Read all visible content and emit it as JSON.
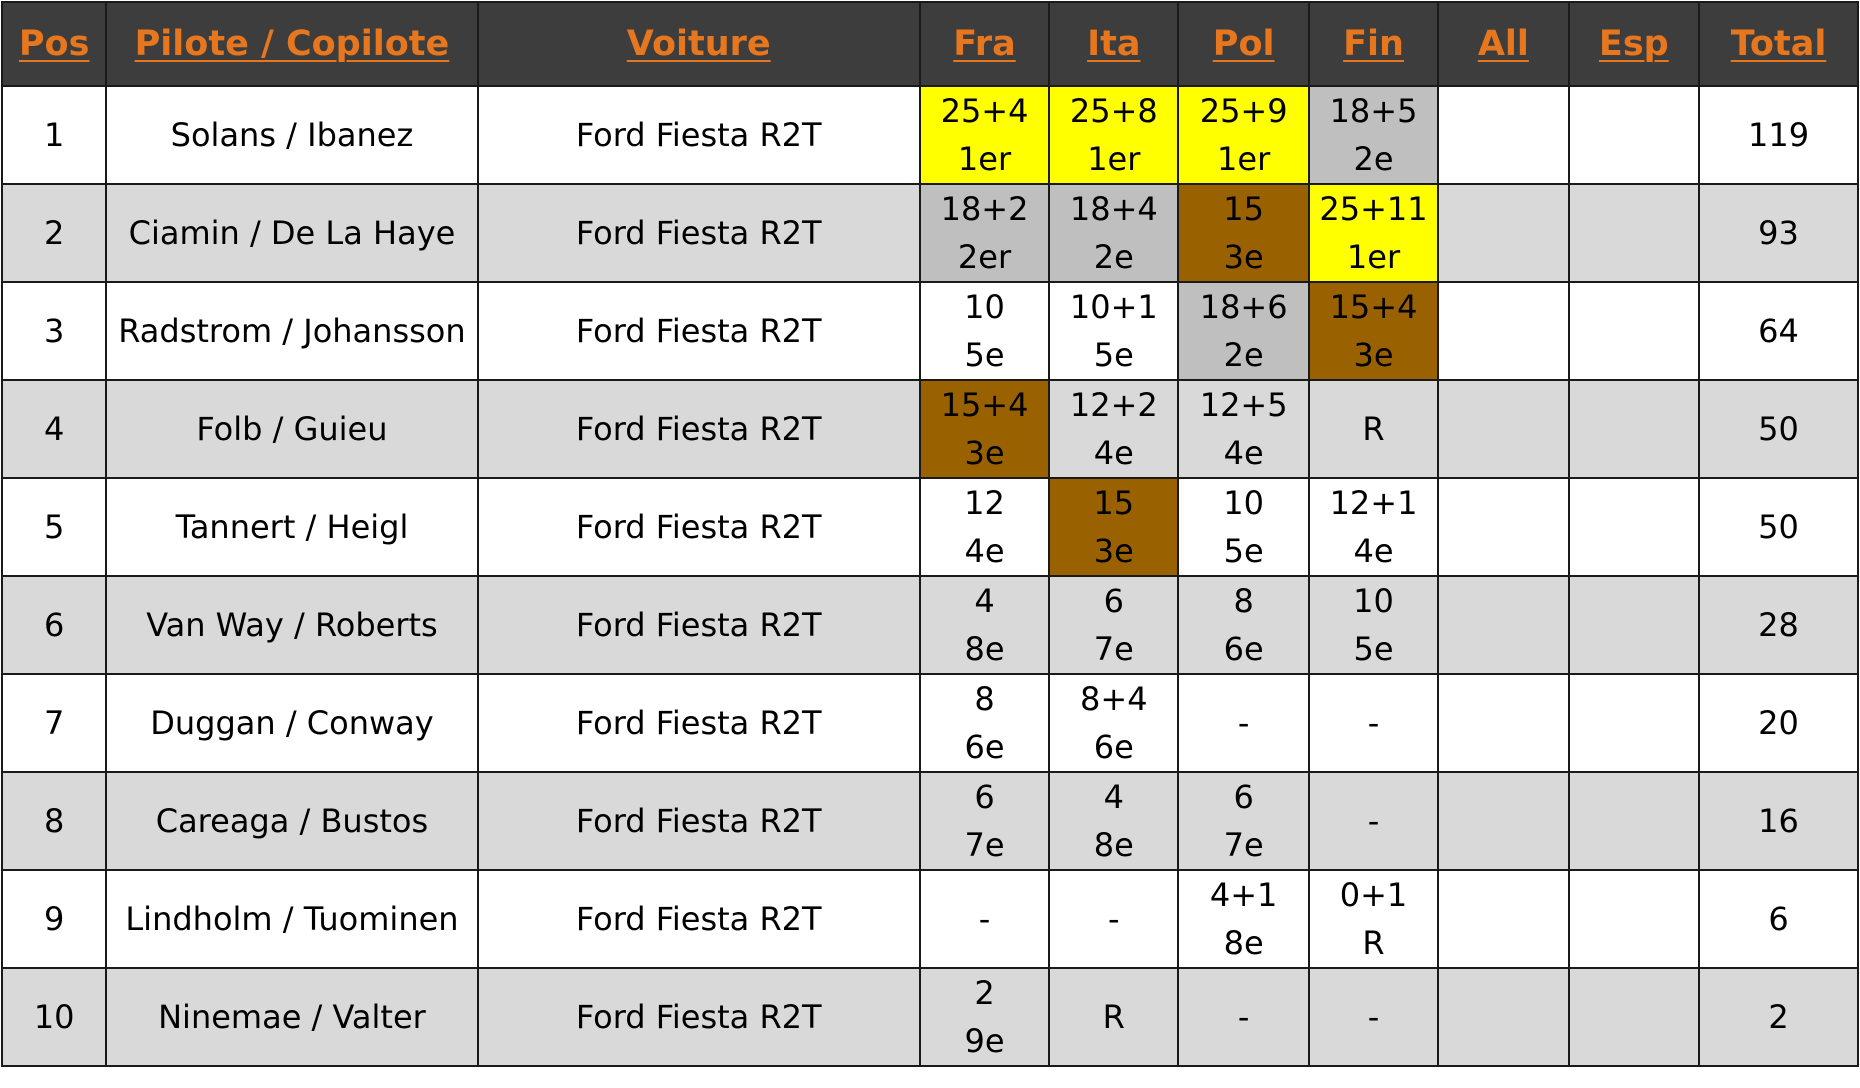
{
  "colors": {
    "header_bg": "#3d3d3d",
    "header_text": "#e6771f",
    "row_odd": "#ffffff",
    "row_even": "#d9d9d9",
    "first_place": "#ffff00",
    "second_place": "#bfbfbf",
    "third_place": "#996100",
    "border": "#1a1a1a"
  },
  "columns": {
    "pos": "Pos",
    "crew": "Pilote / Copilote",
    "car": "Voiture",
    "events": [
      "Fra",
      "Ita",
      "Pol",
      "Fin",
      "All",
      "Esp"
    ],
    "total": "Total"
  },
  "rows": [
    {
      "pos": "1",
      "crew": "Solans / Ibanez",
      "car": "Ford Fiesta R2T",
      "total": "119",
      "events": [
        {
          "pts": "25+4",
          "rank": "1er",
          "podium": "gold"
        },
        {
          "pts": "25+8",
          "rank": "1er",
          "podium": "gold"
        },
        {
          "pts": "25+9",
          "rank": "1er",
          "podium": "gold"
        },
        {
          "pts": "18+5",
          "rank": "2e",
          "podium": "silver"
        },
        {
          "pts": "",
          "rank": ""
        },
        {
          "pts": "",
          "rank": ""
        }
      ]
    },
    {
      "pos": "2",
      "crew": "Ciamin / De La Haye",
      "car": "Ford Fiesta R2T",
      "total": "93",
      "events": [
        {
          "pts": "18+2",
          "rank": "2er",
          "podium": "silver"
        },
        {
          "pts": "18+4",
          "rank": "2e",
          "podium": "silver"
        },
        {
          "pts": "15",
          "rank": "3e",
          "podium": "bronze"
        },
        {
          "pts": "25+11",
          "rank": "1er",
          "podium": "gold"
        },
        {
          "pts": "",
          "rank": ""
        },
        {
          "pts": "",
          "rank": ""
        }
      ]
    },
    {
      "pos": "3",
      "crew": "Radstrom / Johansson",
      "car": "Ford Fiesta R2T",
      "total": "64",
      "events": [
        {
          "pts": "10",
          "rank": "5e"
        },
        {
          "pts": "10+1",
          "rank": "5e"
        },
        {
          "pts": "18+6",
          "rank": "2e",
          "podium": "silver"
        },
        {
          "pts": "15+4",
          "rank": "3e",
          "podium": "bronze"
        },
        {
          "pts": "",
          "rank": ""
        },
        {
          "pts": "",
          "rank": ""
        }
      ]
    },
    {
      "pos": "4",
      "crew": "Folb / Guieu",
      "car": "Ford Fiesta R2T",
      "total": "50",
      "events": [
        {
          "pts": "15+4",
          "rank": "3e",
          "podium": "bronze"
        },
        {
          "pts": "12+2",
          "rank": "4e"
        },
        {
          "pts": "12+5",
          "rank": "4e"
        },
        {
          "pts": "R",
          "rank": ""
        },
        {
          "pts": "",
          "rank": ""
        },
        {
          "pts": "",
          "rank": ""
        }
      ]
    },
    {
      "pos": "5",
      "crew": "Tannert / Heigl",
      "car": "Ford Fiesta R2T",
      "total": "50",
      "events": [
        {
          "pts": "12",
          "rank": "4e"
        },
        {
          "pts": "15",
          "rank": "3e",
          "podium": "bronze"
        },
        {
          "pts": "10",
          "rank": "5e"
        },
        {
          "pts": "12+1",
          "rank": "4e"
        },
        {
          "pts": "",
          "rank": ""
        },
        {
          "pts": "",
          "rank": ""
        }
      ]
    },
    {
      "pos": "6",
      "crew": "Van Way / Roberts",
      "car": "Ford Fiesta R2T",
      "total": "28",
      "events": [
        {
          "pts": "4",
          "rank": "8e"
        },
        {
          "pts": "6",
          "rank": "7e"
        },
        {
          "pts": "8",
          "rank": "6e"
        },
        {
          "pts": "10",
          "rank": "5e"
        },
        {
          "pts": "",
          "rank": ""
        },
        {
          "pts": "",
          "rank": ""
        }
      ]
    },
    {
      "pos": "7",
      "crew": "Duggan / Conway",
      "car": "Ford Fiesta R2T",
      "total": "20",
      "events": [
        {
          "pts": "8",
          "rank": "6e"
        },
        {
          "pts": "8+4",
          "rank": "6e"
        },
        {
          "pts": "-",
          "rank": ""
        },
        {
          "pts": "-",
          "rank": ""
        },
        {
          "pts": "",
          "rank": ""
        },
        {
          "pts": "",
          "rank": ""
        }
      ]
    },
    {
      "pos": "8",
      "crew": "Careaga / Bustos",
      "car": "Ford Fiesta R2T",
      "total": "16",
      "events": [
        {
          "pts": "6",
          "rank": "7e"
        },
        {
          "pts": "4",
          "rank": "8e"
        },
        {
          "pts": "6",
          "rank": "7e"
        },
        {
          "pts": "-",
          "rank": ""
        },
        {
          "pts": "",
          "rank": ""
        },
        {
          "pts": "",
          "rank": ""
        }
      ]
    },
    {
      "pos": "9",
      "crew": "Lindholm / Tuominen",
      "car": "Ford Fiesta R2T",
      "total": "6",
      "events": [
        {
          "pts": "-",
          "rank": ""
        },
        {
          "pts": "-",
          "rank": ""
        },
        {
          "pts": "4+1",
          "rank": "8e"
        },
        {
          "pts": "0+1",
          "rank": "R"
        },
        {
          "pts": "",
          "rank": ""
        },
        {
          "pts": "",
          "rank": ""
        }
      ]
    },
    {
      "pos": "10",
      "crew": "Ninemae / Valter",
      "car": "Ford Fiesta R2T",
      "total": "2",
      "events": [
        {
          "pts": "2",
          "rank": "9e"
        },
        {
          "pts": "R",
          "rank": ""
        },
        {
          "pts": "-",
          "rank": ""
        },
        {
          "pts": "-",
          "rank": ""
        },
        {
          "pts": "",
          "rank": ""
        },
        {
          "pts": "",
          "rank": ""
        }
      ]
    }
  ]
}
